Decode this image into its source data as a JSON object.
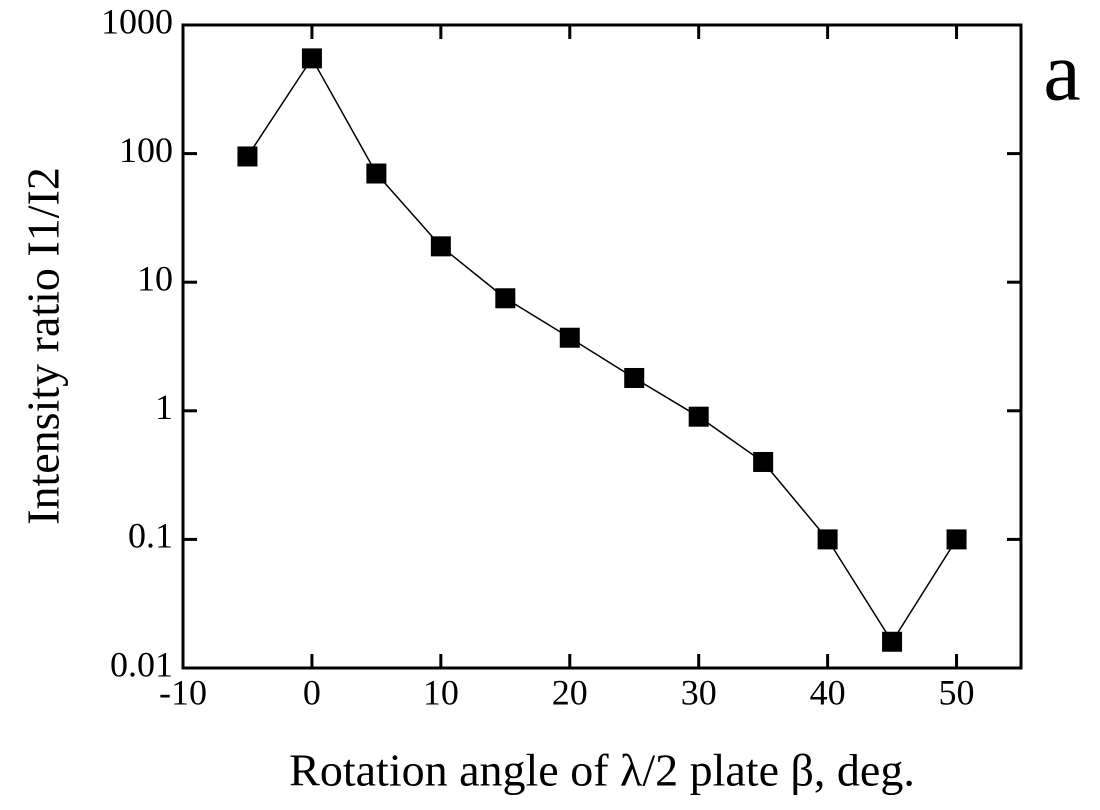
{
  "chart_data": {
    "type": "line",
    "x_label": "Rotation angle of λ/2 plate β, deg.",
    "y_label": "Intensity ratio I1/I2",
    "annotation": "a",
    "x": [
      -5,
      0,
      5,
      10,
      15,
      20,
      25,
      30,
      35,
      40,
      45,
      50
    ],
    "series": [
      {
        "color": "#000000",
        "values": [
          95,
          550,
          70,
          19,
          7.5,
          3.7,
          1.8,
          0.9,
          0.4,
          0.1,
          0.016,
          0.1
        ]
      }
    ],
    "xlim": [
      -10,
      55
    ],
    "xticks": [
      -10,
      0,
      10,
      20,
      30,
      40,
      50
    ],
    "ylim": [
      0.01,
      1000
    ],
    "yticks": [
      0.01,
      0.1,
      1,
      10,
      100,
      1000
    ],
    "yscale": "log",
    "grid": false
  }
}
